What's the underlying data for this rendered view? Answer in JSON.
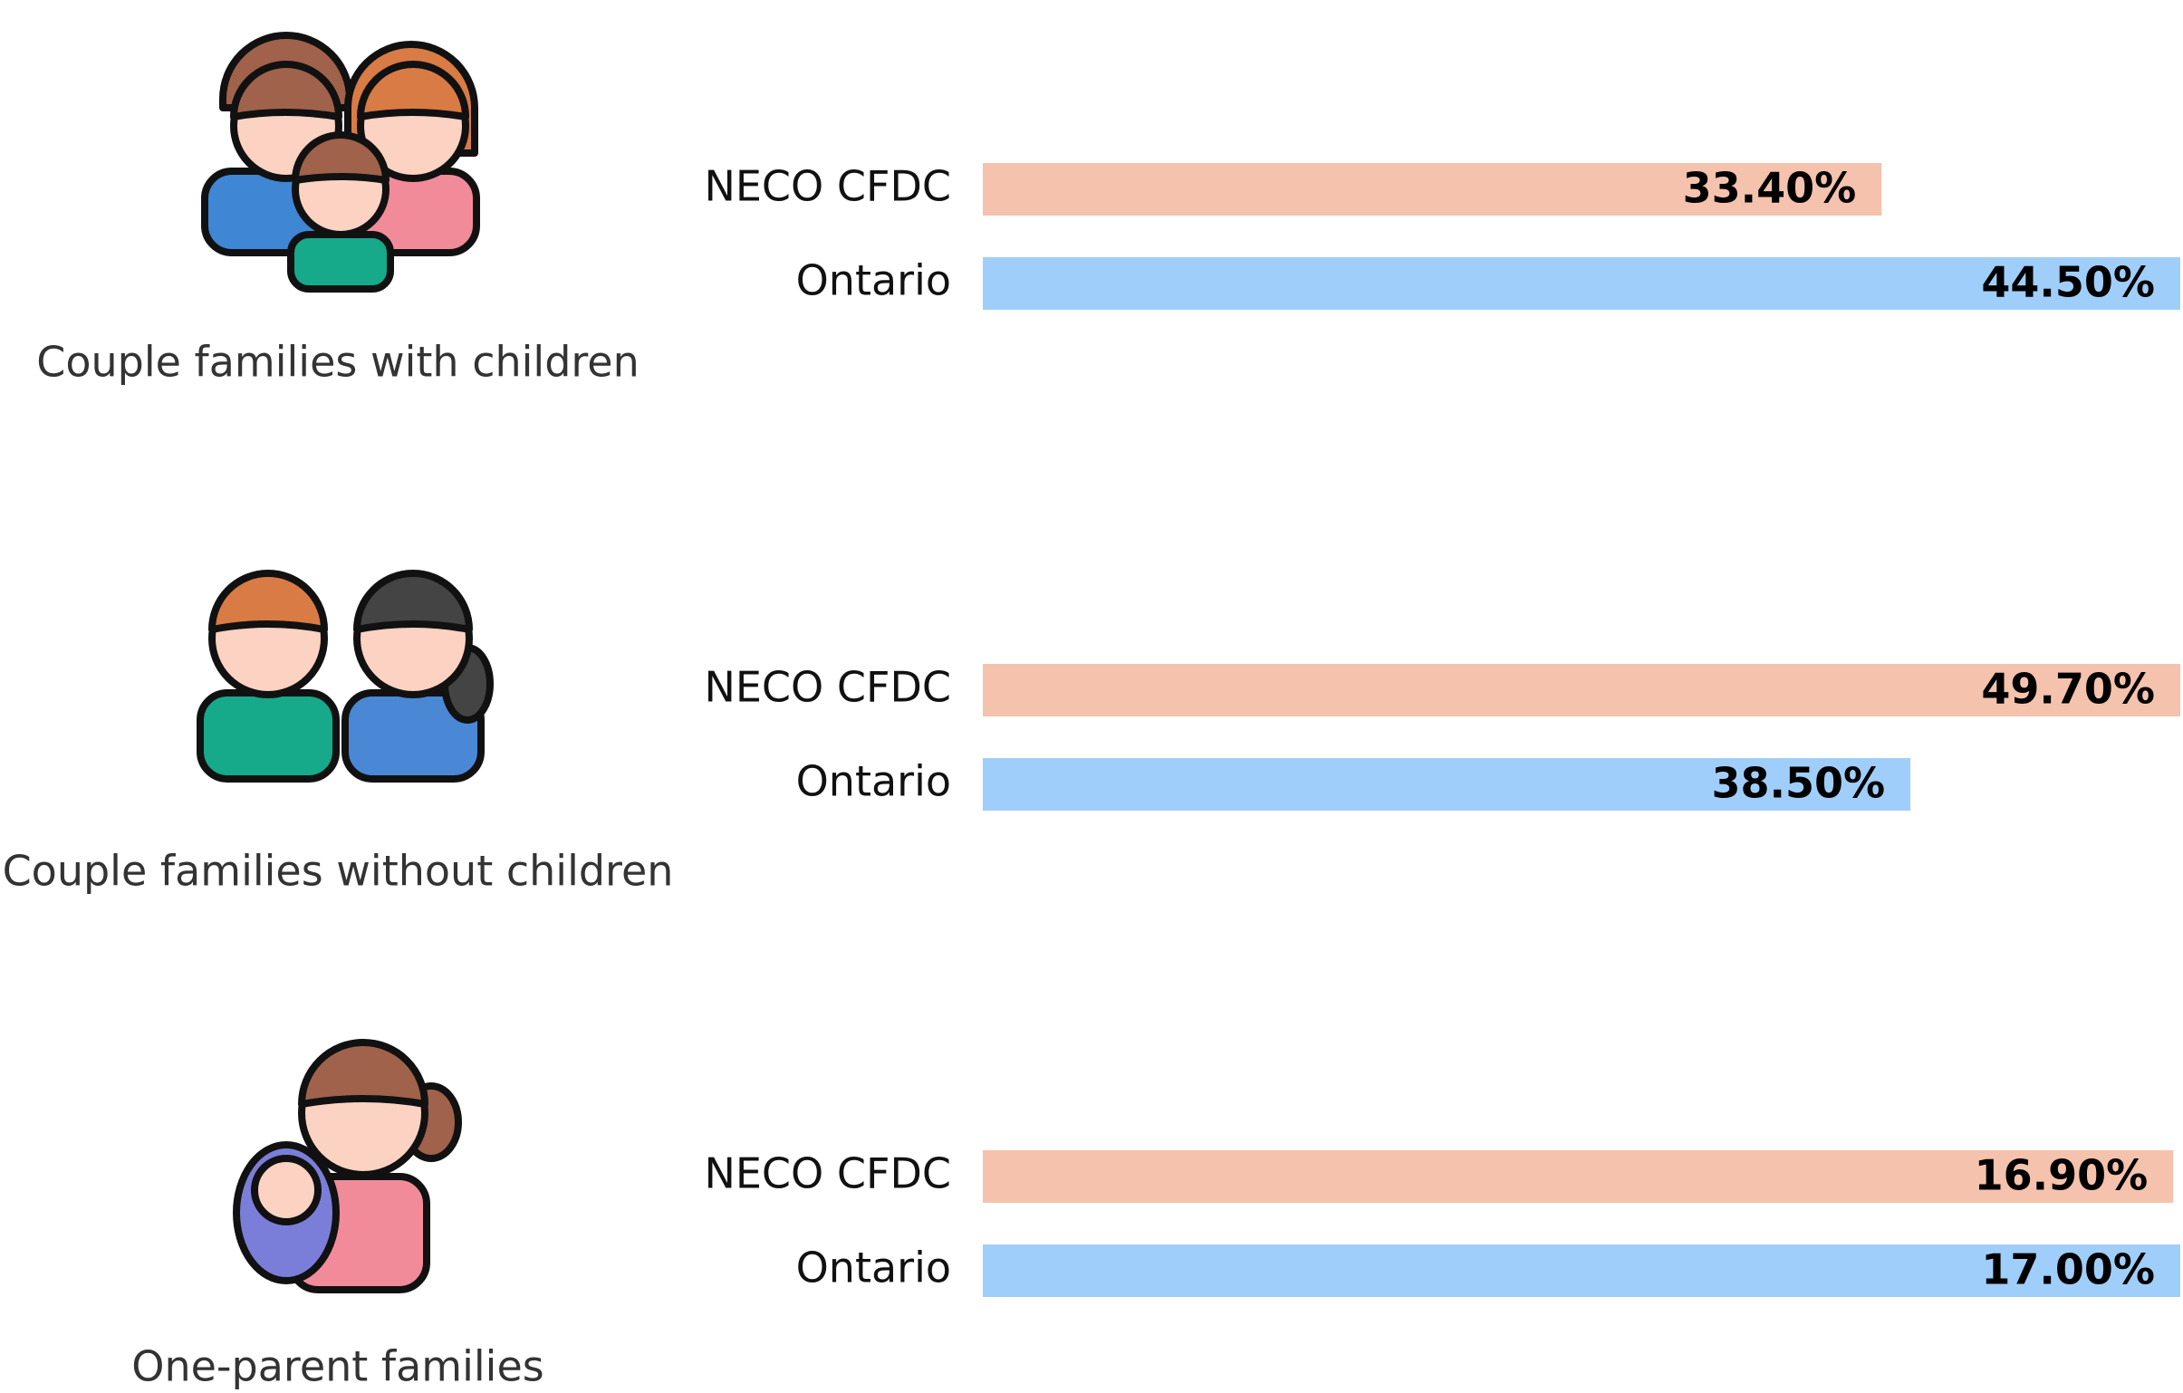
{
  "chart_data": [
    {
      "type": "bar",
      "title": "Couple families with children",
      "categories": [
        "NECO CFDC",
        "Ontario"
      ],
      "values": [
        33.4,
        44.5
      ],
      "value_labels": [
        "33.40%",
        "44.50%"
      ],
      "colors": [
        "#f4c2ad",
        "#a0cefa"
      ],
      "xlim": [
        0,
        44.5
      ]
    },
    {
      "type": "bar",
      "title": "Couple families without children",
      "categories": [
        "NECO CFDC",
        "Ontario"
      ],
      "values": [
        49.7,
        38.5
      ],
      "value_labels": [
        "49.70%",
        "38.50%"
      ],
      "colors": [
        "#f4c2ad",
        "#a0cefa"
      ],
      "xlim": [
        0,
        49.7
      ]
    },
    {
      "type": "bar",
      "title": "One-parent families",
      "categories": [
        "NECO CFDC",
        "Ontario"
      ],
      "values": [
        16.9,
        17.0
      ],
      "value_labels": [
        "16.90%",
        "17.00%"
      ],
      "colors": [
        "#f4c2ad",
        "#a0cefa"
      ],
      "xlim": [
        0,
        17.0
      ]
    }
  ]
}
